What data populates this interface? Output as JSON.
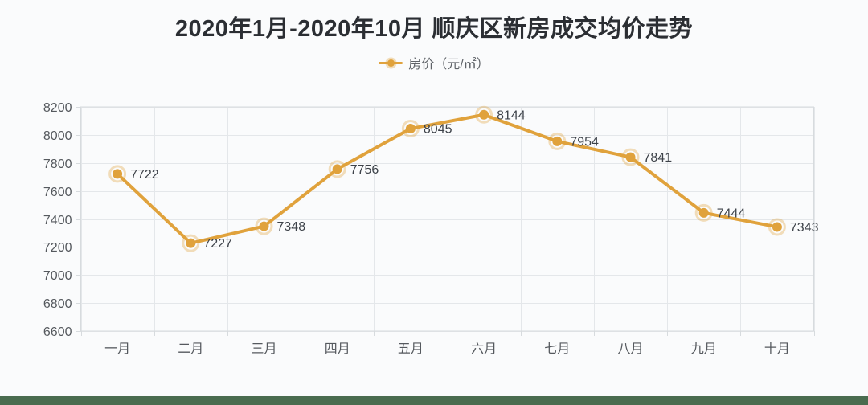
{
  "page": {
    "background_color": "#fafbfc",
    "footer_bar_color": "#4a6c4f"
  },
  "chart": {
    "title": "2020年1月-2020年10月 顺庆区新房成交均价走势",
    "legend_label": "房价（元/㎡）"
  },
  "chart_data": {
    "type": "line",
    "title": "2020年1月-2020年10月 顺庆区新房成交均价走势",
    "legend": [
      "房价（元/㎡）"
    ],
    "legend_position": "top",
    "categories": [
      "一月",
      "二月",
      "三月",
      "四月",
      "五月",
      "六月",
      "七月",
      "八月",
      "九月",
      "十月"
    ],
    "series": [
      {
        "name": "房价（元/㎡）",
        "values": [
          7722,
          7227,
          7348,
          7756,
          8045,
          8144,
          7954,
          7841,
          7444,
          7343
        ]
      }
    ],
    "xlabel": "",
    "ylabel": "",
    "ylim": [
      6600,
      8200
    ],
    "ytick_step": 200,
    "grid": true,
    "colors": {
      "line": "#e0a23c",
      "marker_halo": "rgba(224,162,60,0.35)",
      "data_label": "#3d4249",
      "axis_label": "#55595e",
      "grid_line": "#e4e7ea",
      "plot_border": "#d7dbde",
      "title": "#2b2e33",
      "legend_text": "#5f6368"
    }
  }
}
